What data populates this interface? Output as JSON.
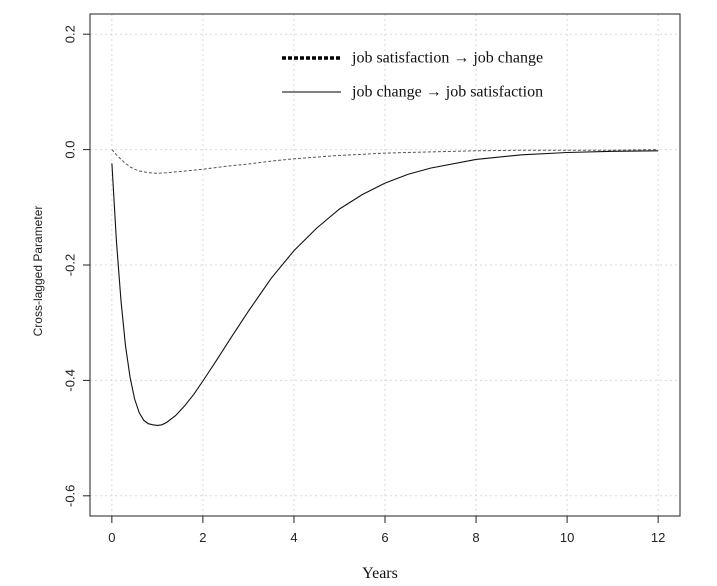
{
  "chart_data": {
    "type": "line",
    "title": "",
    "xlabel": "Years",
    "ylabel": "Cross-lagged Parameter",
    "xlim": [
      -0.48,
      12.48
    ],
    "ylim": [
      -0.635,
      0.235
    ],
    "x_ticks": [
      0,
      2,
      4,
      6,
      8,
      10,
      12
    ],
    "x_tick_labels": [
      "0",
      "2",
      "4",
      "6",
      "8",
      "10",
      "12"
    ],
    "y_ticks": [
      -0.6,
      -0.4,
      -0.2,
      0.0,
      0.2
    ],
    "y_tick_labels": [
      "-0.6",
      "-0.4",
      "-0.2",
      "0.0",
      "0.2"
    ],
    "grid": true,
    "legend_position": "top-center",
    "series": [
      {
        "name": "job satisfaction → job change",
        "style": "dashed",
        "color": "#555555",
        "x": [
          0,
          0.1,
          0.2,
          0.3,
          0.4,
          0.5,
          0.6,
          0.8,
          1.0,
          1.2,
          1.5,
          2.0,
          2.5,
          3.0,
          3.5,
          4.0,
          5.0,
          6.0,
          7.0,
          8.0,
          9.0,
          10.0,
          11.0,
          12.0
        ],
        "y": [
          0.0,
          -0.009,
          -0.017,
          -0.024,
          -0.03,
          -0.034,
          -0.037,
          -0.04,
          -0.041,
          -0.04,
          -0.038,
          -0.034,
          -0.029,
          -0.025,
          -0.02,
          -0.016,
          -0.01,
          -0.006,
          -0.004,
          -0.002,
          -0.001,
          -0.001,
          -0.001,
          0.0
        ]
      },
      {
        "name": "job change → job satisfaction",
        "style": "solid",
        "color": "#111111",
        "x": [
          0,
          0.1,
          0.2,
          0.3,
          0.4,
          0.5,
          0.6,
          0.7,
          0.8,
          0.9,
          1.0,
          1.1,
          1.2,
          1.4,
          1.6,
          1.8,
          2.0,
          2.3,
          2.6,
          3.0,
          3.5,
          4.0,
          4.5,
          5.0,
          5.5,
          6.0,
          6.5,
          7.0,
          8.0,
          9.0,
          10.0,
          11.0,
          12.0
        ],
        "y": [
          -0.024,
          -0.158,
          -0.262,
          -0.34,
          -0.395,
          -0.432,
          -0.456,
          -0.469,
          -0.475,
          -0.477,
          -0.478,
          -0.477,
          -0.473,
          -0.461,
          -0.444,
          -0.424,
          -0.401,
          -0.365,
          -0.328,
          -0.28,
          -0.223,
          -0.175,
          -0.136,
          -0.103,
          -0.078,
          -0.058,
          -0.043,
          -0.032,
          -0.017,
          -0.009,
          -0.005,
          -0.003,
          -0.002
        ]
      }
    ]
  },
  "colors": {
    "axis": "#222222",
    "grid": "#d9d9d9",
    "solid_line": "#111111",
    "dashed_line": "#555555"
  }
}
